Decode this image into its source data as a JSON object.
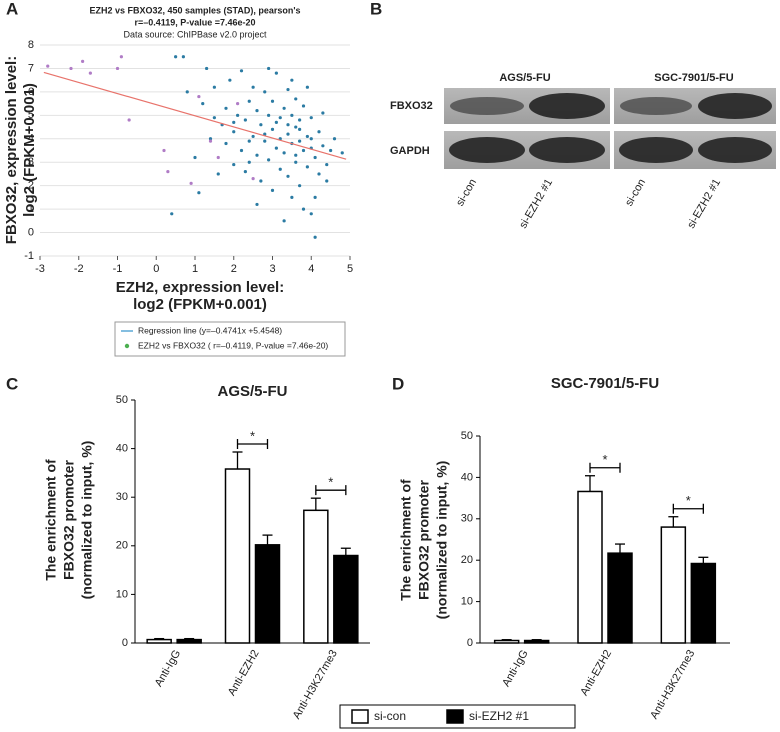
{
  "panel_labels": [
    "A",
    "B",
    "C",
    "D"
  ],
  "blot": {
    "groups": [
      "AGS/5-FU",
      "SGC-7901/5-FU"
    ],
    "rows": [
      "FBXO32",
      "GAPDH"
    ],
    "lanes": [
      "si-con",
      "si-EZH2 #1",
      "si-con",
      "si-EZH2 #1"
    ]
  },
  "chart_data": [
    {
      "type": "scatter",
      "title": [
        "EZH2 vs FBXO32, 450 samples (STAD), pearson's",
        "r=–0.4119, P-value =7.46e-20",
        "Data source: ChIPBase v2.0 project"
      ],
      "x_label": [
        "EZH2, expression level:",
        "log2 (FPKM+0.001)"
      ],
      "y_label": [
        "FBXO32, expression level:",
        "log2 (FPKM+0.001)"
      ],
      "xlim": [
        -3,
        5
      ],
      "xticks": [
        -3,
        -2,
        -1,
        0,
        1,
        2,
        3,
        4,
        5
      ],
      "ylim": [
        -1,
        8
      ],
      "yticks": [
        -1,
        0,
        1,
        2,
        3,
        4,
        5,
        6,
        7,
        8
      ],
      "grid": true,
      "series": [
        {
          "color": "#2b7ba3",
          "x": [
            0.5,
            0.7,
            0.8,
            1.0,
            1.2,
            1.3,
            1.4,
            1.5,
            1.6,
            1.7,
            1.8,
            1.9,
            2.0,
            2.0,
            2.1,
            2.2,
            2.2,
            2.3,
            2.4,
            2.4,
            2.5,
            2.5,
            2.6,
            2.6,
            2.7,
            2.7,
            2.8,
            2.8,
            2.9,
            2.9,
            3.0,
            3.0,
            3.0,
            3.1,
            3.1,
            3.2,
            3.2,
            3.2,
            3.3,
            3.3,
            3.4,
            3.4,
            3.4,
            3.5,
            3.5,
            3.5,
            3.6,
            3.6,
            3.6,
            3.7,
            3.7,
            3.7,
            3.8,
            3.8,
            3.8,
            3.9,
            3.9,
            4.0,
            4.0,
            4.0,
            4.1,
            4.1,
            4.2,
            4.2,
            4.3,
            4.3,
            4.4,
            4.5,
            4.6,
            4.8,
            0.4,
            1.1,
            1.5,
            2.3,
            2.9,
            3.5,
            3.9,
            4.1,
            2.6,
            3.3,
            2.0,
            1.8,
            3.6,
            4.4,
            2.8,
            3.1,
            3.4,
            3.7,
            4.0,
            2.4
          ],
          "values": [
            7.5,
            7.5,
            6.0,
            3.2,
            5.5,
            7.0,
            4.0,
            6.2,
            2.5,
            4.6,
            3.8,
            6.5,
            4.3,
            2.9,
            5.0,
            3.5,
            6.9,
            4.8,
            3.0,
            5.6,
            4.1,
            6.2,
            3.3,
            5.2,
            2.2,
            4.6,
            3.9,
            6.0,
            5.0,
            3.1,
            4.4,
            1.8,
            5.6,
            3.6,
            6.8,
            4.9,
            2.7,
            4.0,
            3.4,
            5.3,
            4.2,
            2.4,
            6.1,
            3.8,
            5.0,
            1.5,
            4.5,
            3.0,
            5.7,
            3.9,
            4.8,
            2.0,
            3.5,
            5.4,
            1.0,
            4.1,
            2.8,
            3.6,
            4.9,
            0.8,
            3.2,
            -0.2,
            4.3,
            2.5,
            3.7,
            5.1,
            2.2,
            3.5,
            4.0,
            3.4,
            0.8,
            1.7,
            4.9,
            2.6,
            7.0,
            6.5,
            6.2,
            1.5,
            1.2,
            0.5,
            4.7,
            5.3,
            3.3,
            2.9,
            4.2,
            4.7,
            4.6,
            4.4,
            4.0,
            3.9
          ]
        },
        {
          "color": "#b07cc6",
          "x": [
            -2.8,
            -2.2,
            -1.9,
            -1.7,
            -1.0,
            -0.9,
            -0.7,
            0.2,
            0.3,
            0.9,
            1.1,
            1.6,
            2.5,
            1.4,
            2.1
          ],
          "values": [
            7.1,
            7.0,
            7.3,
            6.8,
            7.0,
            7.5,
            4.8,
            3.5,
            2.6,
            2.1,
            5.8,
            3.2,
            2.3,
            3.9,
            5.5
          ]
        }
      ],
      "regression": {
        "name": "Regression line (y=–0.4741x +5.4548)",
        "color": "#e8736b",
        "x": [
          -2.9,
          4.9
        ],
        "values": [
          6.83,
          3.13
        ]
      },
      "scatter_legend": "EZH2 vs FBXO32 ( r=–0.4119, P-value =7.46e-20)",
      "legend_marker_color": "#4caf50",
      "legend_line_color": "#5aa9d6"
    },
    {
      "type": "bar",
      "title": "AGS/5-FU",
      "y_label": [
        "The enrichment of",
        "FBXO32 promoter",
        "(normalized to input, %)"
      ],
      "categories": [
        "Anti-IgG",
        "Anti-EZH2",
        "Anti-H3K27me3"
      ],
      "ylim": [
        0,
        50
      ],
      "yticks": [
        0,
        10,
        20,
        30,
        40,
        50
      ],
      "series": [
        {
          "name": "si-con",
          "color": "#ffffff",
          "values": [
            0.7,
            35.8,
            27.3
          ],
          "errors": [
            0.2,
            3.5,
            2.5
          ]
        },
        {
          "name": "si-EZH2 #1",
          "color": "#000000",
          "values": [
            0.7,
            20.2,
            18.0
          ],
          "errors": [
            0.2,
            2.0,
            1.5
          ]
        }
      ],
      "annotations": [
        "*",
        "*"
      ]
    },
    {
      "type": "bar",
      "title": "SGC-7901/5-FU",
      "y_label": [
        "The enrichment of",
        "FBXO32 promoter",
        "(normalized to input, %)"
      ],
      "categories": [
        "Anti-IgG",
        "Anti-EZH2",
        "Anti-H3K27me3"
      ],
      "ylim": [
        0,
        50
      ],
      "yticks": [
        0,
        10,
        20,
        30,
        40,
        50
      ],
      "series": [
        {
          "color": "#ffffff",
          "values": [
            0.6,
            36.6,
            28.0
          ],
          "errors": [
            0.2,
            3.8,
            2.5
          ]
        },
        {
          "color": "#000000",
          "values": [
            0.6,
            21.7,
            19.2
          ],
          "errors": [
            0.2,
            2.2,
            1.5
          ]
        }
      ],
      "annotations": [
        "*",
        "*"
      ]
    }
  ]
}
